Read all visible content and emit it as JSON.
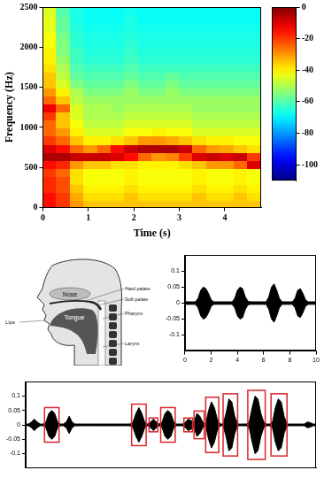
{
  "chart_data": [
    {
      "type": "heatmap",
      "xlabel": "Time (s)",
      "ylabel": "Frequency (Hz)",
      "xlim": [
        0,
        4.8
      ],
      "xticks": [
        0,
        1,
        2,
        3,
        4
      ],
      "ylim": [
        0,
        2500
      ],
      "yticks": [
        0,
        500,
        1000,
        1500,
        2000,
        2500
      ],
      "grid": false,
      "cells": {
        "x": [
          0.15,
          0.45,
          0.75,
          1.05,
          1.35,
          1.65,
          1.95,
          2.25,
          2.55,
          2.85,
          3.15,
          3.45,
          3.75,
          4.05,
          4.35,
          4.65
        ],
        "y": [
          50,
          150,
          250,
          350,
          450,
          550,
          650,
          750,
          850,
          950,
          1050,
          1150,
          1250,
          1350,
          1450,
          1550,
          1650,
          1750,
          1850,
          1950,
          2050,
          2150,
          2250,
          2350,
          2450
        ],
        "z": [
          [
            -15,
            -20,
            -30,
            -35,
            -35,
            -35,
            -35,
            -35,
            -35,
            -35,
            -35,
            -35,
            -35,
            -35,
            -35,
            -35
          ],
          [
            -15,
            -20,
            -32,
            -38,
            -38,
            -38,
            -35,
            -38,
            -38,
            -38,
            -38,
            -35,
            -38,
            -38,
            -35,
            -38
          ],
          [
            -18,
            -22,
            -35,
            -40,
            -40,
            -40,
            -38,
            -40,
            -40,
            -40,
            -40,
            -38,
            -40,
            -40,
            -38,
            -40
          ],
          [
            -18,
            -22,
            -38,
            -42,
            -42,
            -42,
            -40,
            -42,
            -42,
            -42,
            -42,
            -40,
            -42,
            -42,
            -40,
            -42
          ],
          [
            -20,
            -25,
            -38,
            -42,
            -42,
            -42,
            -40,
            -42,
            -42,
            -42,
            -42,
            -40,
            -42,
            -42,
            -40,
            -42
          ],
          [
            -15,
            -18,
            -30,
            -35,
            -35,
            -38,
            -38,
            -40,
            -40,
            -40,
            -38,
            -35,
            -30,
            -30,
            -25,
            -10
          ],
          [
            -5,
            -5,
            -8,
            -8,
            -8,
            -10,
            -15,
            -25,
            -30,
            -28,
            -20,
            -10,
            -8,
            -10,
            -8,
            -20
          ],
          [
            -10,
            -15,
            -25,
            -30,
            -25,
            -15,
            -8,
            -5,
            -5,
            -5,
            -8,
            -25,
            -30,
            -32,
            -35,
            -38
          ],
          [
            -20,
            -25,
            -35,
            -40,
            -40,
            -38,
            -35,
            -30,
            -30,
            -32,
            -35,
            -38,
            -40,
            -40,
            -42,
            -42
          ],
          [
            -25,
            -30,
            -40,
            -45,
            -45,
            -45,
            -42,
            -42,
            -40,
            -42,
            -42,
            -45,
            -45,
            -45,
            -45,
            -45
          ],
          [
            -25,
            -35,
            -42,
            -48,
            -48,
            -48,
            -45,
            -45,
            -45,
            -45,
            -45,
            -48,
            -48,
            -48,
            -48,
            -48
          ],
          [
            -20,
            -35,
            -45,
            -50,
            -50,
            -50,
            -48,
            -48,
            -48,
            -48,
            -48,
            -50,
            -50,
            -50,
            -50,
            -50
          ],
          [
            -12,
            -25,
            -45,
            -50,
            -50,
            -52,
            -50,
            -50,
            -50,
            -50,
            -50,
            -52,
            -52,
            -52,
            -52,
            -52
          ],
          [
            -25,
            -35,
            -48,
            -52,
            -52,
            -52,
            -52,
            -52,
            -52,
            -52,
            -52,
            -52,
            -52,
            -52,
            -52,
            -52
          ],
          [
            -30,
            -40,
            -50,
            -55,
            -55,
            -55,
            -52,
            -55,
            -55,
            -52,
            -55,
            -55,
            -55,
            -55,
            -55,
            -55
          ],
          [
            -35,
            -45,
            -55,
            -58,
            -58,
            -58,
            -55,
            -58,
            -58,
            -55,
            -58,
            -58,
            -58,
            -58,
            -58,
            -58
          ],
          [
            -35,
            -48,
            -58,
            -60,
            -60,
            -60,
            -58,
            -60,
            -60,
            -58,
            -60,
            -60,
            -60,
            -60,
            -60,
            -60
          ],
          [
            -38,
            -50,
            -60,
            -62,
            -62,
            -62,
            -60,
            -62,
            -62,
            -62,
            -62,
            -62,
            -62,
            -62,
            -62,
            -62
          ],
          [
            -40,
            -52,
            -62,
            -64,
            -64,
            -64,
            -62,
            -64,
            -64,
            -64,
            -64,
            -64,
            -64,
            -64,
            -64,
            -64
          ],
          [
            -40,
            -55,
            -62,
            -65,
            -65,
            -65,
            -63,
            -65,
            -65,
            -65,
            -65,
            -65,
            -65,
            -65,
            -65,
            -65
          ],
          [
            -42,
            -55,
            -64,
            -66,
            -66,
            -66,
            -64,
            -66,
            -66,
            -66,
            -66,
            -66,
            -66,
            -66,
            -66,
            -66
          ],
          [
            -42,
            -56,
            -64,
            -66,
            -66,
            -66,
            -65,
            -66,
            -66,
            -66,
            -66,
            -66,
            -66,
            -66,
            -66,
            -66
          ],
          [
            -44,
            -58,
            -65,
            -67,
            -67,
            -67,
            -66,
            -67,
            -67,
            -67,
            -67,
            -67,
            -67,
            -67,
            -67,
            -67
          ],
          [
            -44,
            -58,
            -66,
            -68,
            -68,
            -68,
            -66,
            -68,
            -68,
            -68,
            -68,
            -68,
            -68,
            -68,
            -68,
            -68
          ],
          [
            -45,
            -60,
            -66,
            -68,
            -68,
            -68,
            -67,
            -68,
            -68,
            -68,
            -68,
            -68,
            -68,
            -68,
            -68,
            -68
          ]
        ]
      },
      "colorbar": {
        "lim": [
          -110,
          0
        ],
        "ticks": [
          0,
          -20,
          -40,
          -60,
          -80,
          -100
        ]
      }
    },
    {
      "type": "waveform",
      "xlim": [
        0,
        10
      ],
      "xticks": [
        0,
        2,
        4,
        6,
        8,
        10
      ],
      "ylim": [
        -0.15,
        0.15
      ],
      "yticks": [
        -0.1,
        -0.05,
        0,
        0.05,
        0.1
      ],
      "grid": false,
      "color": "#000000",
      "x": [
        0,
        0.2,
        0.4,
        0.6,
        0.8,
        1,
        1.2,
        1.4,
        1.6,
        1.8,
        2,
        2.2,
        2.4,
        2.6,
        2.8,
        3,
        3.2,
        3.4,
        3.6,
        3.8,
        4,
        4.2,
        4.4,
        4.6,
        4.8,
        5,
        5.2,
        5.4,
        5.6,
        5.8,
        6,
        6.2,
        6.4,
        6.6,
        6.8,
        7,
        7.2,
        7.4,
        7.6,
        7.8,
        8,
        8.2,
        8.4,
        8.6,
        8.8,
        9,
        9.2,
        9.4,
        9.6,
        9.8,
        10
      ],
      "values": [
        0.004,
        0.004,
        0.004,
        0.004,
        0.004,
        0.015,
        0.04,
        0.05,
        0.045,
        0.03,
        0.01,
        0.004,
        0.004,
        0.004,
        0.004,
        0.004,
        0.004,
        0.004,
        0.004,
        0.015,
        0.04,
        0.05,
        0.045,
        0.02,
        0.006,
        0.004,
        0.004,
        0.004,
        0.004,
        0.004,
        0.004,
        0.004,
        0.02,
        0.05,
        0.06,
        0.04,
        0.015,
        0.004,
        0.004,
        0.004,
        0.004,
        0.004,
        0.015,
        0.04,
        0.045,
        0.03,
        0.01,
        0.004,
        0.004,
        0.004,
        0.004
      ]
    },
    {
      "type": "waveform",
      "xlim": [
        0,
        20
      ],
      "ylim": [
        -0.15,
        0.15
      ],
      "yticks": [
        -0.1,
        -0.05,
        0,
        0.05,
        0.1
      ],
      "tick_labels": "y",
      "grid": false,
      "color": "#000000",
      "x": [
        0,
        0.2,
        0.4,
        0.6,
        0.8,
        1,
        1.2,
        1.4,
        1.6,
        1.8,
        2,
        2.2,
        2.4,
        2.6,
        2.8,
        3,
        3.2,
        3.4,
        3.6,
        3.8,
        4,
        4.2,
        4.4,
        4.6,
        4.8,
        5,
        5.2,
        5.4,
        5.6,
        5.8,
        6,
        6.2,
        6.4,
        6.6,
        6.8,
        7,
        7.2,
        7.4,
        7.6,
        7.8,
        8,
        8.2,
        8.4,
        8.6,
        8.8,
        9,
        9.2,
        9.4,
        9.6,
        9.8,
        10,
        10.2,
        10.4,
        10.6,
        10.8,
        11,
        11.2,
        11.4,
        11.6,
        11.8,
        12,
        12.2,
        12.4,
        12.6,
        12.8,
        13,
        13.2,
        13.4,
        13.6,
        13.8,
        14,
        14.2,
        14.4,
        14.6,
        14.8,
        15,
        15.2,
        15.4,
        15.6,
        15.8,
        16,
        16.2,
        16.4,
        16.6,
        16.8,
        17,
        17.2,
        17.4,
        17.6,
        17.8,
        18,
        18.2,
        18.4,
        18.6,
        18.8,
        19,
        19.2,
        19.4,
        19.6,
        19.8,
        20
      ],
      "values": [
        0.003,
        0.003,
        0.01,
        0.02,
        0.01,
        0.003,
        0.003,
        0.01,
        0.04,
        0.05,
        0.04,
        0.01,
        0.003,
        0.003,
        0.01,
        0.03,
        0.01,
        0.003,
        0.003,
        0.003,
        0.003,
        0.003,
        0.003,
        0.003,
        0.003,
        0.003,
        0.003,
        0.003,
        0.003,
        0.003,
        0.003,
        0.003,
        0.003,
        0.003,
        0.003,
        0.003,
        0.003,
        0.01,
        0.04,
        0.06,
        0.04,
        0.01,
        0.003,
        0.01,
        0.02,
        0.01,
        0.003,
        0.01,
        0.04,
        0.05,
        0.04,
        0.01,
        0.003,
        0.003,
        0.003,
        0.01,
        0.02,
        0.015,
        0.01,
        0.04,
        0.03,
        0.01,
        0.003,
        0.05,
        0.08,
        0.06,
        0.02,
        0.003,
        0.003,
        0.04,
        0.09,
        0.08,
        0.03,
        0.003,
        0.003,
        0.003,
        0.003,
        0.01,
        0.06,
        0.1,
        0.09,
        0.04,
        0.01,
        0.003,
        0.003,
        0.01,
        0.06,
        0.09,
        0.08,
        0.03,
        0.003,
        0.003,
        0.003,
        0.003,
        0.003,
        0.003,
        0.003,
        0.01,
        0.008,
        0.003,
        0.003
      ],
      "segments": {
        "color": "#d8262b",
        "ranges": [
          [
            1.3,
            2.3
          ],
          [
            7.3,
            8.3
          ],
          [
            8.5,
            9.1
          ],
          [
            9.3,
            10.3
          ],
          [
            10.9,
            11.5
          ],
          [
            11.6,
            12.3
          ],
          [
            12.4,
            13.3
          ],
          [
            13.6,
            14.6
          ],
          [
            15.3,
            16.5
          ],
          [
            16.9,
            18.0
          ]
        ]
      }
    }
  ],
  "diagram": {
    "labels": {
      "nose": "Nose",
      "tongue": "Tongue",
      "lips": "Lips",
      "hard_palate": "Hard palate",
      "soft_palate": "Soft palate",
      "pharynx": "Pharynx",
      "larynx": "Larynx"
    }
  }
}
